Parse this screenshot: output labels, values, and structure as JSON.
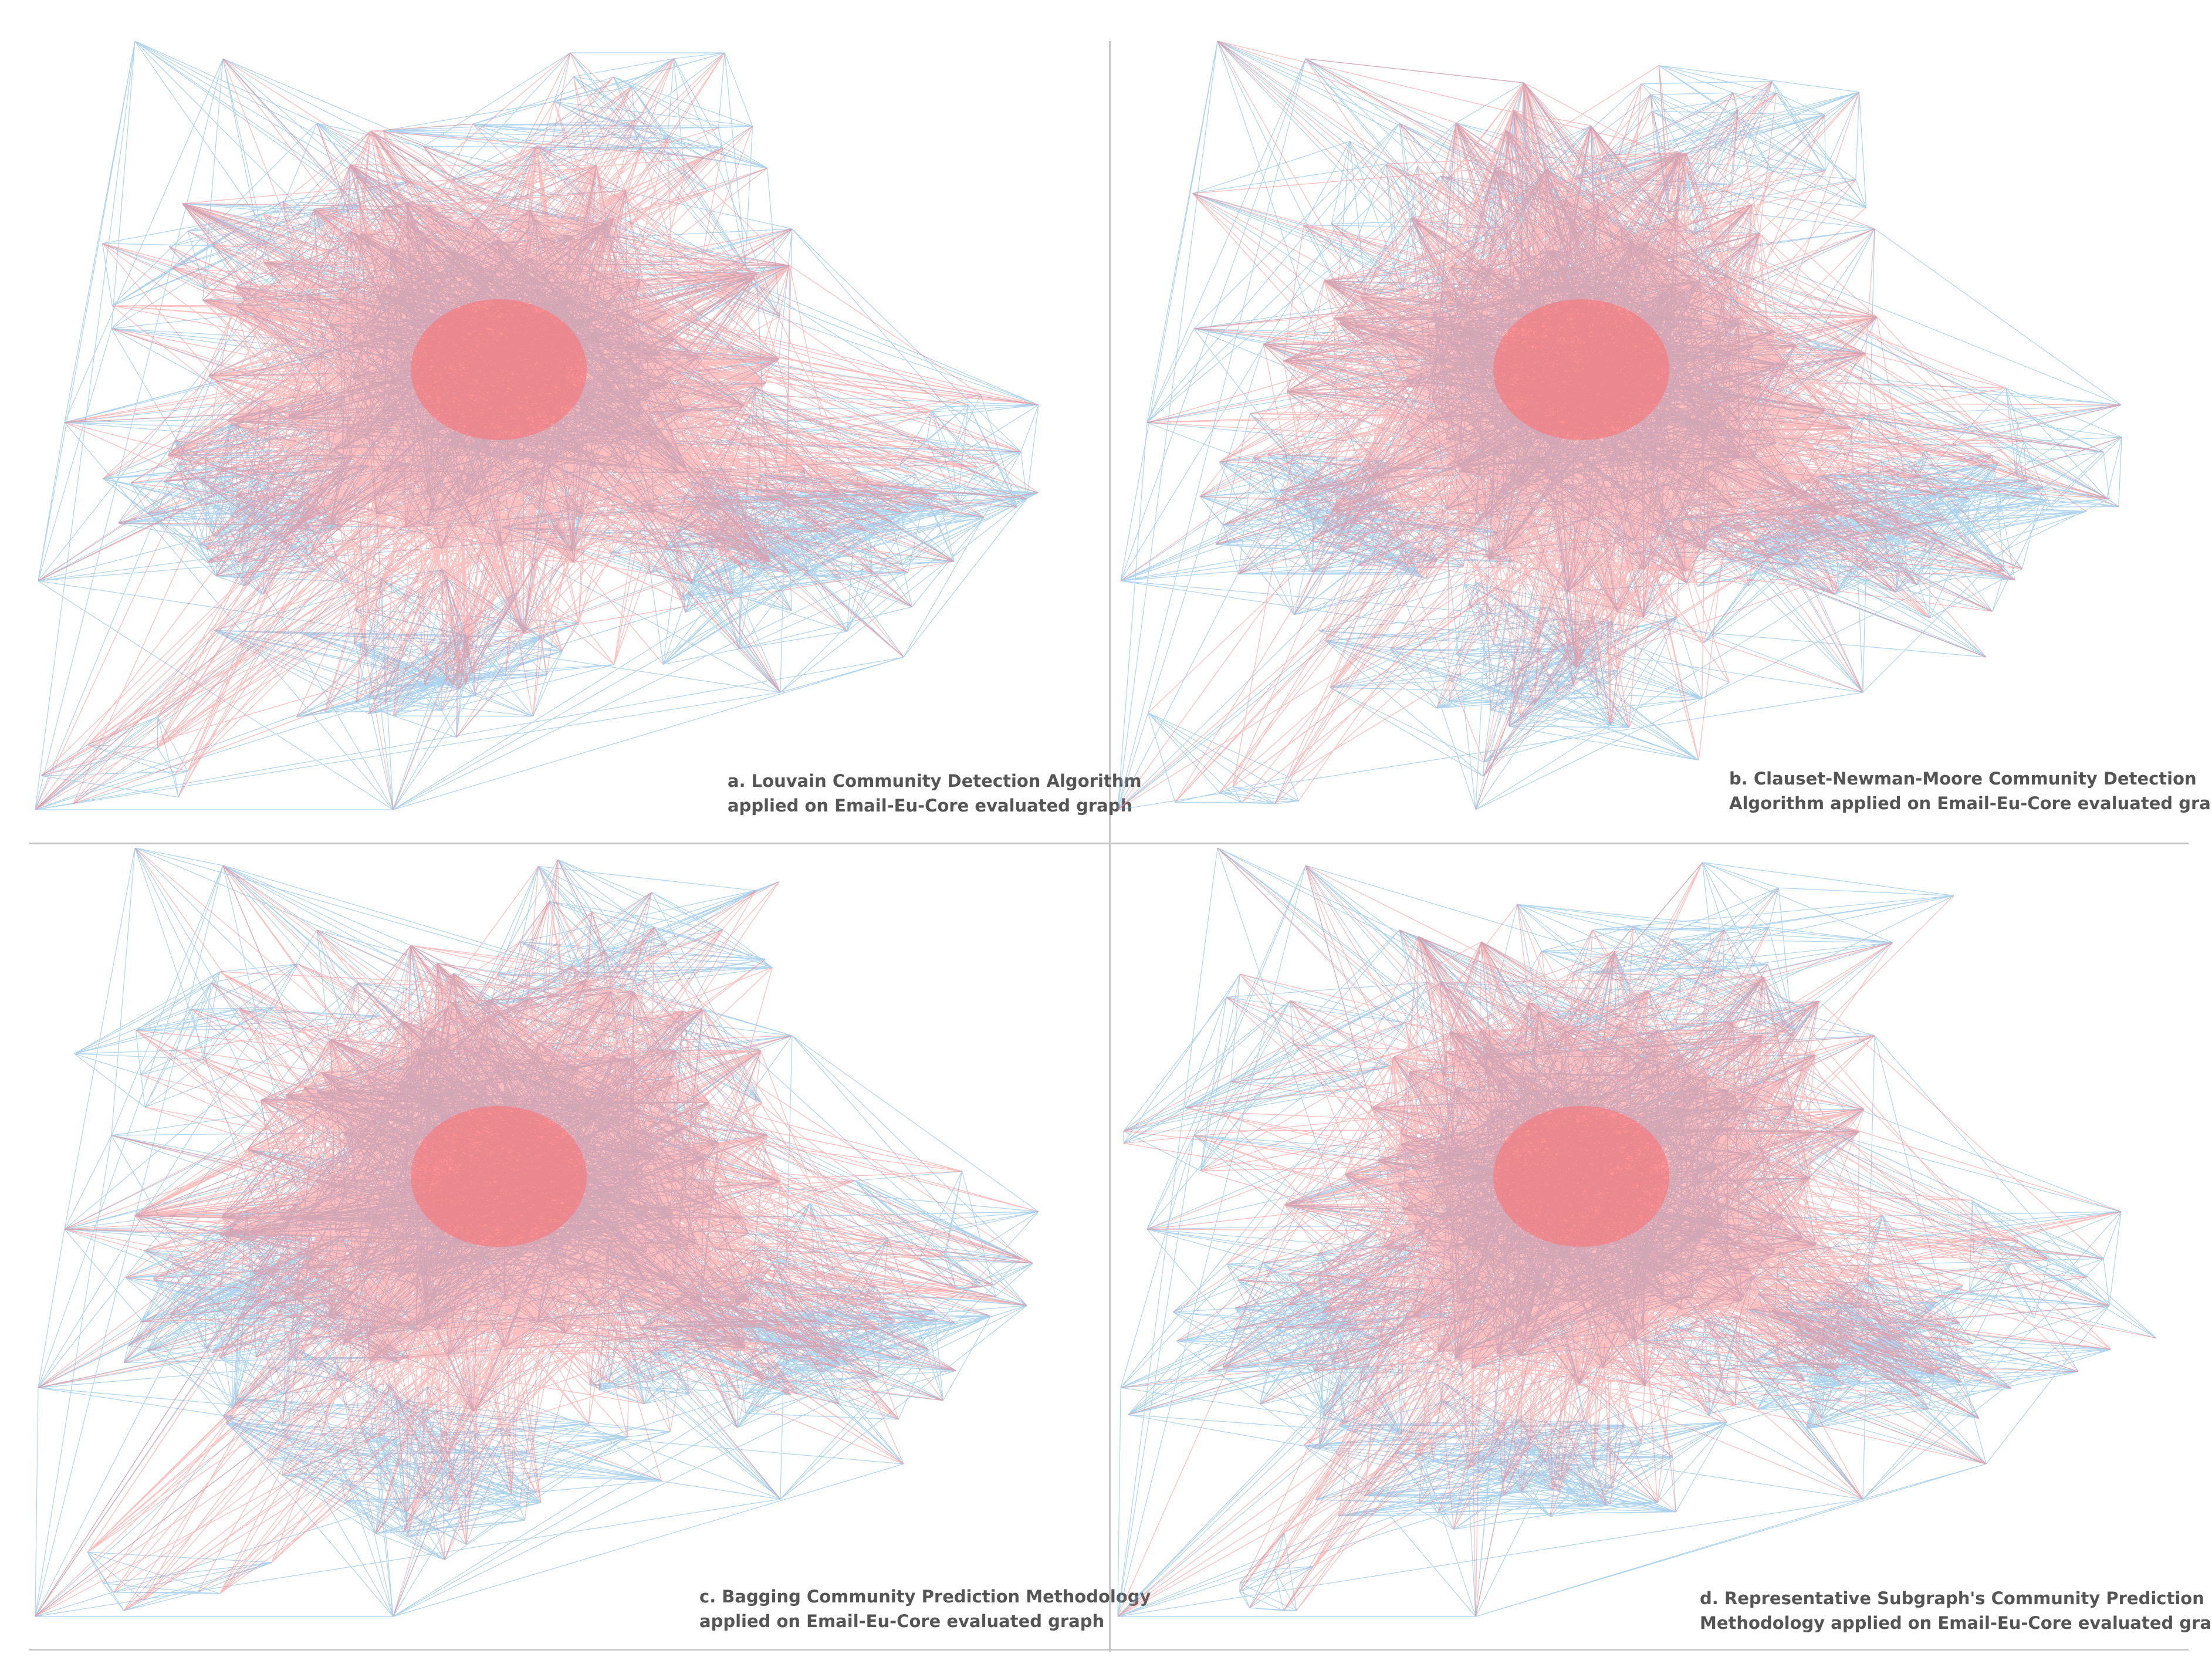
{
  "figure": {
    "colors": {
      "edge_blue": "#6aaee0",
      "edge_red": "#ff6f6f",
      "divider": "#c8c8c8",
      "caption_text": "#555555"
    },
    "panels": [
      {
        "id": "a",
        "caption_line1": "a. Louvain Community Detection Algorithm",
        "caption_line2": "applied on Email-Eu-Core evaluated graph"
      },
      {
        "id": "b",
        "caption_line1": "b. Clauset-Newman-Moore Community Detection",
        "caption_line2": "Algorithm applied on Email-Eu-Core evaluated graph"
      },
      {
        "id": "c",
        "caption_line1": "c. Bagging Community Prediction Methodology",
        "caption_line2": "applied on Email-Eu-Core evaluated graph"
      },
      {
        "id": "d",
        "caption_line1": "d. Representative Subgraph's Community Prediction",
        "caption_line2": "Methodology applied on Email-Eu-Core evaluated graph"
      }
    ]
  }
}
